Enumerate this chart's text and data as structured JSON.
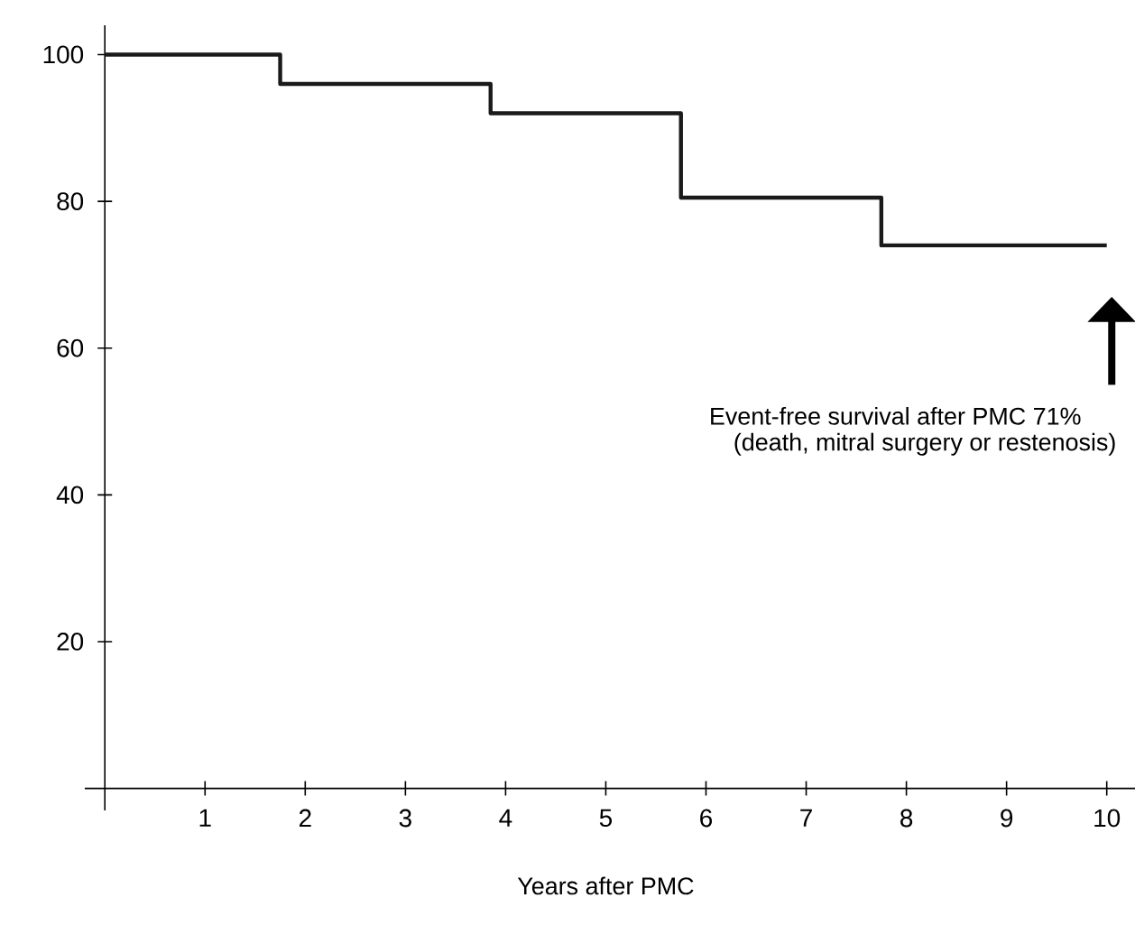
{
  "chart_data": {
    "type": "step",
    "xlabel": "Years after PMC",
    "x": [
      0,
      1.75,
      3.85,
      5.75,
      7.75,
      10
    ],
    "values": [
      100,
      96,
      92,
      80.5,
      74,
      74
    ],
    "color": "#1a1a1a",
    "xlim": [
      -0.2,
      10.3
    ],
    "ylim": [
      -3,
      104
    ],
    "xticks": [
      1,
      2,
      3,
      4,
      5,
      6,
      7,
      8,
      9,
      10
    ],
    "yticks": [
      20,
      40,
      60,
      80,
      100
    ],
    "annotations": [
      "Event-free survival after PMC 71%",
      "(death, mitral surgery or restenosis)"
    ],
    "grid": false
  }
}
